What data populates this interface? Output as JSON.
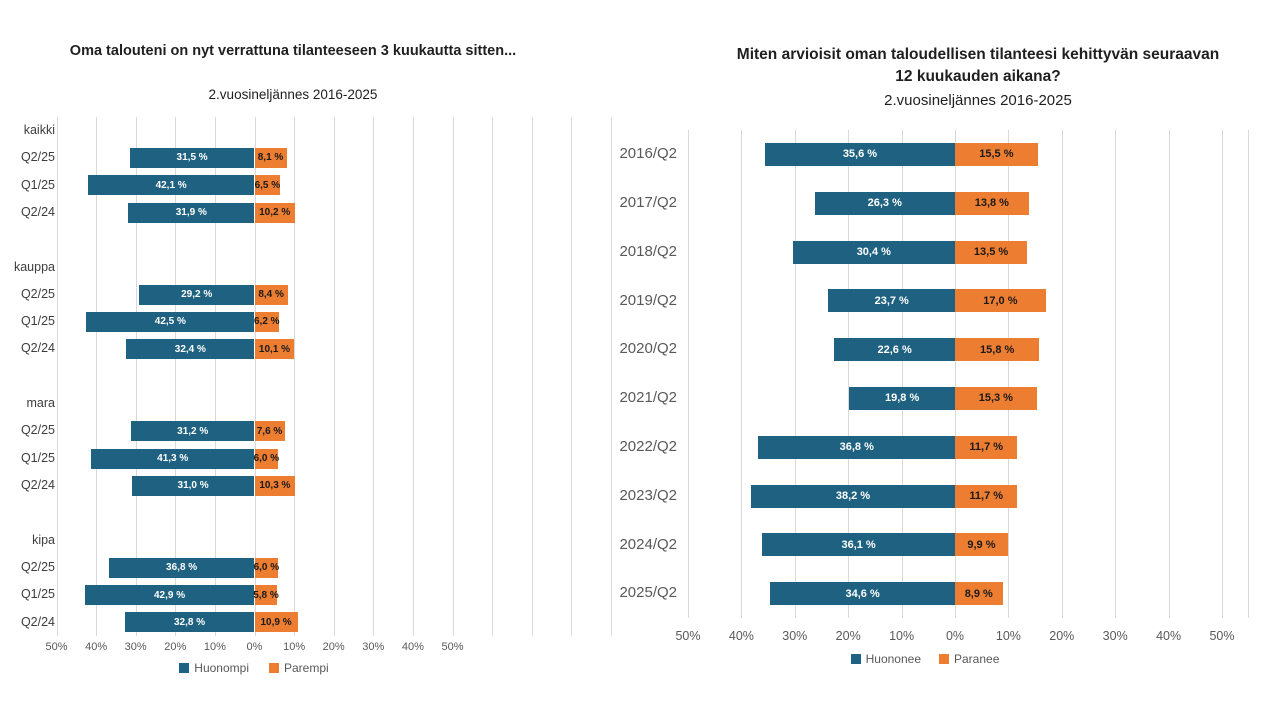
{
  "page": {
    "background": "#ffffff"
  },
  "chart_data": [
    {
      "type": "bar",
      "layout_hint": "horizontal diverging bars, zero axis in middle, negative series extends left, gridlines on, legend bottom center",
      "title": "Oma talouteni on nyt verrattuna tilanteeseen 3 kuukautta sitten...",
      "subtitle": "2.vuosineljännes 2016-2025",
      "value_suffix": " %",
      "decimal_separator": ",",
      "series": [
        {
          "name": "Huonompi",
          "color": "#1e6180",
          "label_color": "#ffffff",
          "direction": "left"
        },
        {
          "name": "Parempi",
          "color": "#ed7d31",
          "label_color": "#1a1a1a",
          "direction": "right"
        }
      ],
      "axis": {
        "tick_labels": [
          "50%",
          "40%",
          "30%",
          "20%",
          "10%",
          "0%",
          "10%",
          "20%",
          "30%",
          "40%",
          "50%"
        ],
        "tick_values": [
          -50,
          -40,
          -30,
          -20,
          -10,
          0,
          10,
          20,
          30,
          40,
          50
        ],
        "labeled_range": [
          -50,
          50
        ],
        "grid": true
      },
      "groups": [
        {
          "label": "kaikki",
          "rows": [
            {
              "label": "Q2/25",
              "huonompi": 31.5,
              "parempi": 8.1
            },
            {
              "label": "Q1/25",
              "huonompi": 42.1,
              "parempi": 6.5
            },
            {
              "label": "Q2/24",
              "huonompi": 31.9,
              "parempi": 10.2
            }
          ]
        },
        {
          "label": "kauppa",
          "rows": [
            {
              "label": "Q2/25",
              "huonompi": 29.2,
              "parempi": 8.4
            },
            {
              "label": "Q1/25",
              "huonompi": 42.5,
              "parempi": 6.2
            },
            {
              "label": "Q2/24",
              "huonompi": 32.4,
              "parempi": 10.1
            }
          ]
        },
        {
          "label": "mara",
          "rows": [
            {
              "label": "Q2/25",
              "huonompi": 31.2,
              "parempi": 7.6
            },
            {
              "label": "Q1/25",
              "huonompi": 41.3,
              "parempi": 6.0
            },
            {
              "label": "Q2/24",
              "huonompi": 31.0,
              "parempi": 10.3
            }
          ]
        },
        {
          "label": "kipa",
          "rows": [
            {
              "label": "Q2/25",
              "huonompi": 36.8,
              "parempi": 6.0
            },
            {
              "label": "Q1/25",
              "huonompi": 42.9,
              "parempi": 5.8
            },
            {
              "label": "Q2/24",
              "huonompi": 32.8,
              "parempi": 10.9
            }
          ]
        }
      ]
    },
    {
      "type": "bar",
      "layout_hint": "horizontal diverging bars, zero axis in middle, negative series extends left, gridlines on, legend bottom center",
      "title": "Miten arvioisit oman taloudellisen tilanteesi kehittyvän seuraavan 12 kuukauden aikana?",
      "subtitle": "2.vuosineljännes 2016-2025",
      "value_suffix": " %",
      "decimal_separator": ",",
      "categories": [
        "2016/Q2",
        "2017/Q2",
        "2018/Q2",
        "2019/Q2",
        "2020/Q2",
        "2021/Q2",
        "2022/Q2",
        "2023/Q2",
        "2024/Q2",
        "2025/Q2"
      ],
      "series": [
        {
          "name": "Huononee",
          "color": "#1e6180",
          "label_color": "#ffffff",
          "direction": "left",
          "values": [
            35.6,
            26.3,
            30.4,
            23.7,
            22.6,
            19.8,
            36.8,
            38.2,
            36.1,
            34.6
          ]
        },
        {
          "name": "Paranee",
          "color": "#ed7d31",
          "label_color": "#1a1a1a",
          "direction": "right",
          "values": [
            15.5,
            13.8,
            13.5,
            17.0,
            15.8,
            15.3,
            11.7,
            11.7,
            9.9,
            8.9
          ]
        }
      ],
      "axis": {
        "tick_labels": [
          "50%",
          "40%",
          "30%",
          "20%",
          "10%",
          "0%",
          "10%",
          "20%",
          "30%",
          "40%",
          "50%"
        ],
        "tick_values": [
          -50,
          -40,
          -30,
          -20,
          -10,
          0,
          10,
          20,
          30,
          40,
          50
        ],
        "labeled_range": [
          -50,
          50
        ],
        "grid": true
      }
    }
  ]
}
